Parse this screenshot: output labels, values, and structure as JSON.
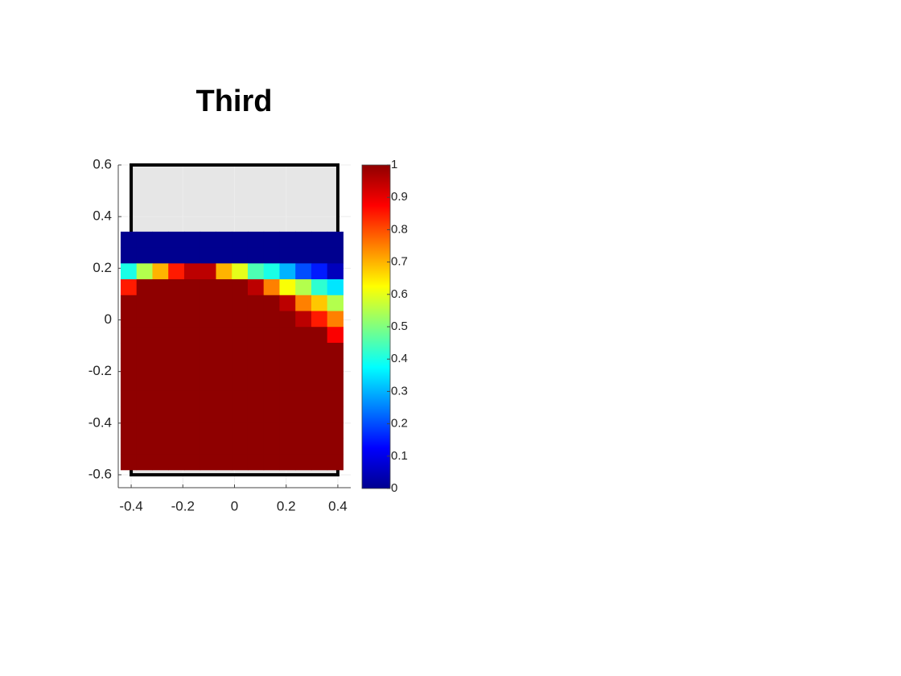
{
  "chart_data": {
    "type": "heatmap",
    "title": "Third",
    "x": [
      -0.41,
      -0.3485,
      -0.287,
      -0.2255,
      -0.164,
      -0.1025,
      -0.041,
      0.0205,
      0.082,
      0.1435,
      0.205,
      0.2665,
      0.328,
      0.3895
    ],
    "y": [
      0.311,
      0.2495,
      0.188,
      0.1265,
      0.065,
      0.0035,
      -0.058,
      -0.1195,
      -0.181,
      -0.2425,
      -0.304,
      -0.3655,
      -0.427,
      -0.4885,
      -0.55
    ],
    "z": [
      [
        0,
        0,
        0,
        0,
        0,
        0,
        0,
        0,
        0,
        0,
        0,
        0,
        0,
        0
      ],
      [
        0,
        0,
        0,
        0,
        0,
        0,
        0,
        0,
        0,
        0,
        0,
        0,
        0,
        0
      ],
      [
        0.4,
        0.55,
        0.7,
        0.85,
        0.95,
        0.95,
        0.7,
        0.6,
        0.45,
        0.4,
        0.3,
        0.2,
        0.15,
        0.05
      ],
      [
        0.85,
        1,
        1,
        1,
        1,
        1,
        1,
        1,
        0.95,
        0.75,
        0.62,
        0.55,
        0.42,
        0.35
      ],
      [
        1,
        1,
        1,
        1,
        1,
        1,
        1,
        1,
        1,
        1,
        0.95,
        0.75,
        0.68,
        0.55
      ],
      [
        1,
        1,
        1,
        1,
        1,
        1,
        1,
        1,
        1,
        1,
        1,
        0.95,
        0.85,
        0.75
      ],
      [
        1,
        1,
        1,
        1,
        1,
        1,
        1,
        1,
        1,
        1,
        1,
        1,
        1,
        0.88
      ],
      [
        1,
        1,
        1,
        1,
        1,
        1,
        1,
        1,
        1,
        1,
        1,
        1,
        1,
        1
      ],
      [
        1,
        1,
        1,
        1,
        1,
        1,
        1,
        1,
        1,
        1,
        1,
        1,
        1,
        1
      ],
      [
        1,
        1,
        1,
        1,
        1,
        1,
        1,
        1,
        1,
        1,
        1,
        1,
        1,
        1
      ],
      [
        1,
        1,
        1,
        1,
        1,
        1,
        1,
        1,
        1,
        1,
        1,
        1,
        1,
        1
      ],
      [
        1,
        1,
        1,
        1,
        1,
        1,
        1,
        1,
        1,
        1,
        1,
        1,
        1,
        1
      ],
      [
        1,
        1,
        1,
        1,
        1,
        1,
        1,
        1,
        1,
        1,
        1,
        1,
        1,
        1
      ],
      [
        1,
        1,
        1,
        1,
        1,
        1,
        1,
        1,
        1,
        1,
        1,
        1,
        1,
        1
      ],
      [
        1,
        1,
        1,
        1,
        1,
        1,
        1,
        1,
        1,
        1,
        1,
        1,
        1,
        1
      ]
    ],
    "colormap": [
      "#00008f",
      "#0000ff",
      "#0080ff",
      "#00ffff",
      "#80ff80",
      "#ffff00",
      "#ff8000",
      "#ff0000",
      "#8f0000"
    ],
    "clim": [
      0,
      1
    ],
    "cticks": [
      0,
      0.1,
      0.2,
      0.3,
      0.4,
      0.5,
      0.6,
      0.7,
      0.8,
      0.9,
      1
    ],
    "frame": {
      "x": [
        -0.4,
        0.4
      ],
      "y": [
        -0.6,
        0.6
      ],
      "fill": "#e6e6e6",
      "color": "#000000"
    },
    "xlim": [
      -0.45,
      0.45
    ],
    "xticks": [
      -0.4,
      -0.2,
      0,
      0.2,
      0.4
    ],
    "ylim": [
      -0.65,
      0.6
    ],
    "yticks": [
      -0.6,
      -0.4,
      -0.2,
      0,
      0.2,
      0.4,
      0.6
    ],
    "grid": true
  }
}
